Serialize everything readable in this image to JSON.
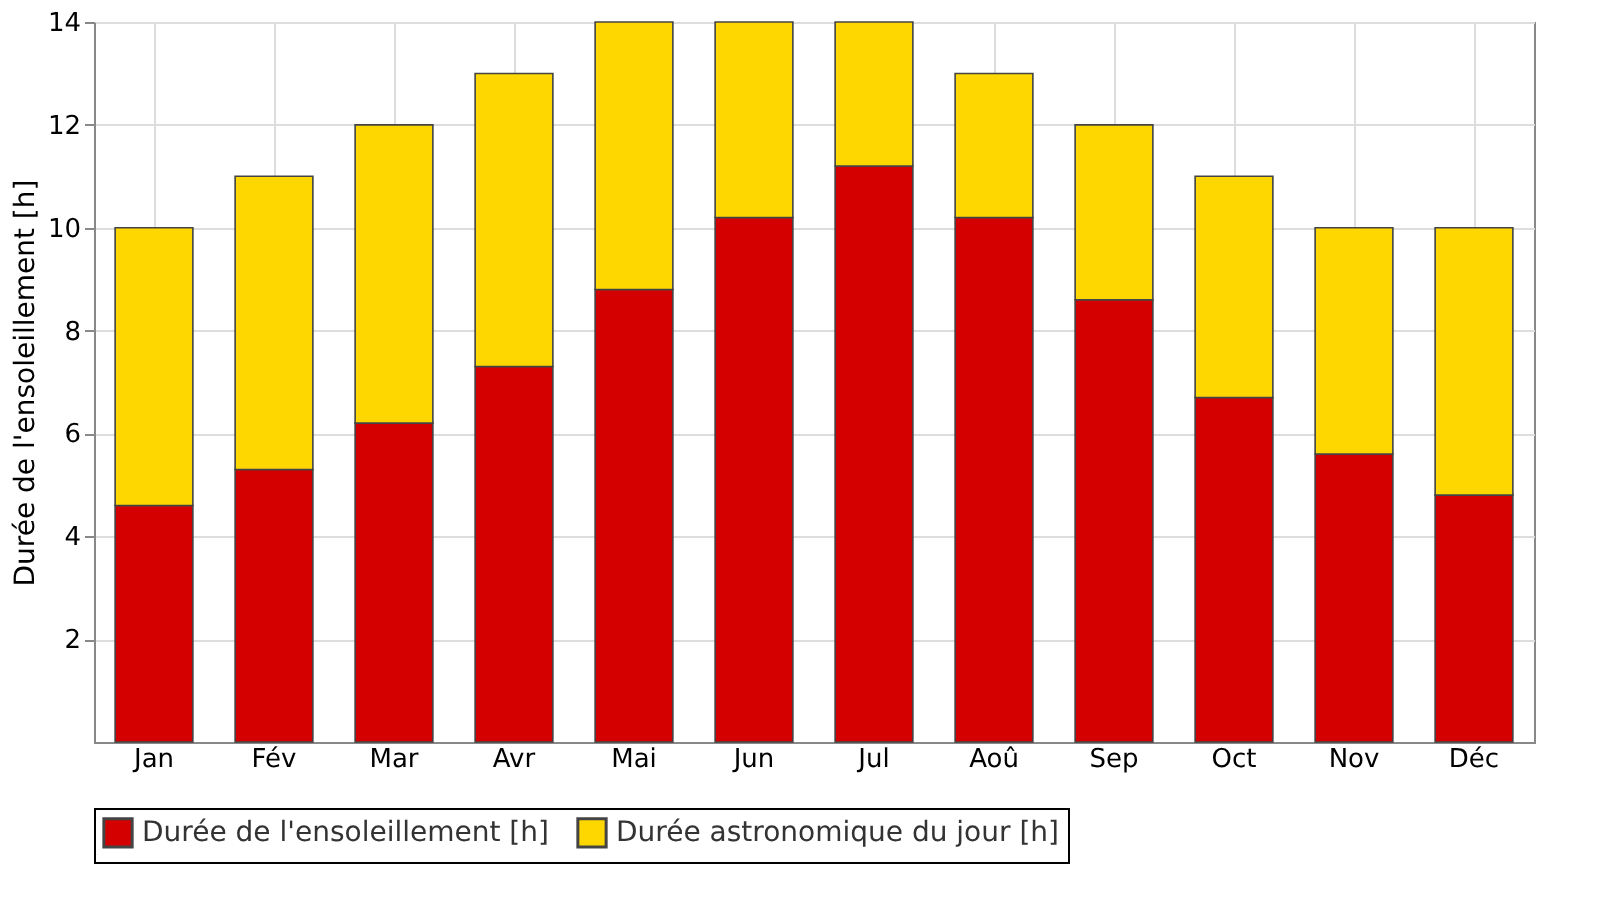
{
  "chart_data": {
    "type": "bar",
    "stacked": true,
    "ylabel": "Durée de l'ensoleillement [h]",
    "categories": [
      "Jan",
      "Fév",
      "Mar",
      "Avr",
      "Mai",
      "Jun",
      "Jul",
      "Aoû",
      "Sep",
      "Oct",
      "Nov",
      "Déc"
    ],
    "series": [
      {
        "name": "Durée de l'ensoleillement [h]",
        "color": "#d40000",
        "values": [
          4.6,
          5.3,
          6.2,
          7.3,
          8.8,
          10.2,
          11.2,
          10.2,
          8.6,
          6.7,
          5.6,
          4.8
        ]
      },
      {
        "name": "Durée astronomique du jour [h]",
        "color": "#ffd700",
        "values": [
          5.4,
          5.7,
          5.8,
          5.7,
          5.2,
          3.8,
          2.8,
          2.8,
          3.4,
          4.3,
          4.4,
          5.2
        ]
      }
    ],
    "ylim": [
      0,
      14
    ],
    "yticks": [
      2,
      4,
      6,
      8,
      10,
      12,
      14
    ],
    "grid": true,
    "legend": "bottom"
  }
}
